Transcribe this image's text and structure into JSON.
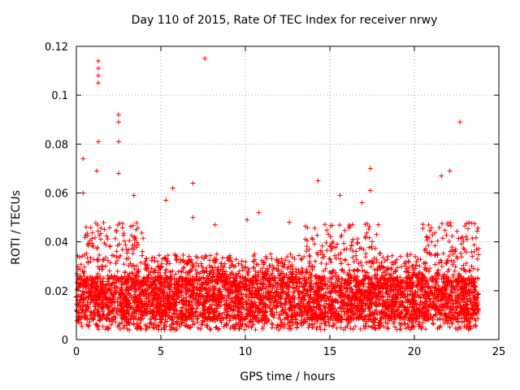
{
  "chart_data": {
    "type": "scatter",
    "title": "Day 110 of 2015, Rate Of TEC Index for receiver nrwy",
    "xlabel": "GPS time / hours",
    "ylabel": "ROTI / TECUs",
    "xlim": [
      0,
      25
    ],
    "ylim": [
      0,
      0.12
    ],
    "xticks": [
      0,
      5,
      10,
      15,
      20,
      25
    ],
    "xtick_labels": [
      "0",
      "5",
      "10",
      "15",
      "20",
      "25"
    ],
    "yticks": [
      0,
      0.02,
      0.04,
      0.06,
      0.08,
      0.1,
      0.12
    ],
    "ytick_labels": [
      "0",
      "0.02",
      "0.04",
      "0.06",
      "0.08",
      "0.1",
      "0.12"
    ],
    "grid": true,
    "marker": "+",
    "color": "#ff0000",
    "series": [
      {
        "name": "ROTI",
        "notable_points": [
          {
            "x": 1.3,
            "y": 0.114
          },
          {
            "x": 1.3,
            "y": 0.111
          },
          {
            "x": 1.3,
            "y": 0.108
          },
          {
            "x": 1.3,
            "y": 0.105
          },
          {
            "x": 7.6,
            "y": 0.115
          },
          {
            "x": 2.5,
            "y": 0.092
          },
          {
            "x": 2.5,
            "y": 0.089
          },
          {
            "x": 22.7,
            "y": 0.089
          },
          {
            "x": 1.3,
            "y": 0.081
          },
          {
            "x": 2.5,
            "y": 0.081
          },
          {
            "x": 0.4,
            "y": 0.074
          },
          {
            "x": 17.4,
            "y": 0.07
          },
          {
            "x": 1.2,
            "y": 0.069
          },
          {
            "x": 22.1,
            "y": 0.069
          },
          {
            "x": 21.6,
            "y": 0.067
          },
          {
            "x": 2.5,
            "y": 0.068
          },
          {
            "x": 14.3,
            "y": 0.065
          },
          {
            "x": 6.9,
            "y": 0.064
          },
          {
            "x": 5.7,
            "y": 0.062
          },
          {
            "x": 0.4,
            "y": 0.06
          },
          {
            "x": 3.4,
            "y": 0.059
          },
          {
            "x": 17.4,
            "y": 0.061
          },
          {
            "x": 15.6,
            "y": 0.059
          },
          {
            "x": 5.3,
            "y": 0.057
          },
          {
            "x": 16.9,
            "y": 0.056
          },
          {
            "x": 10.8,
            "y": 0.052
          },
          {
            "x": 12.6,
            "y": 0.048
          },
          {
            "x": 10.1,
            "y": 0.049
          },
          {
            "x": 8.2,
            "y": 0.047
          },
          {
            "x": 6.9,
            "y": 0.05
          }
        ],
        "envelope": {
          "x_range": [
            0,
            23.8
          ],
          "typical_min": 0.004,
          "typical_max": 0.035,
          "dense_band": [
            0.008,
            0.025
          ],
          "active_intervals": [
            [
              0.5,
              4.0
            ],
            [
              13.5,
              18.0
            ],
            [
              20.5,
              23.8
            ]
          ]
        }
      }
    ]
  }
}
